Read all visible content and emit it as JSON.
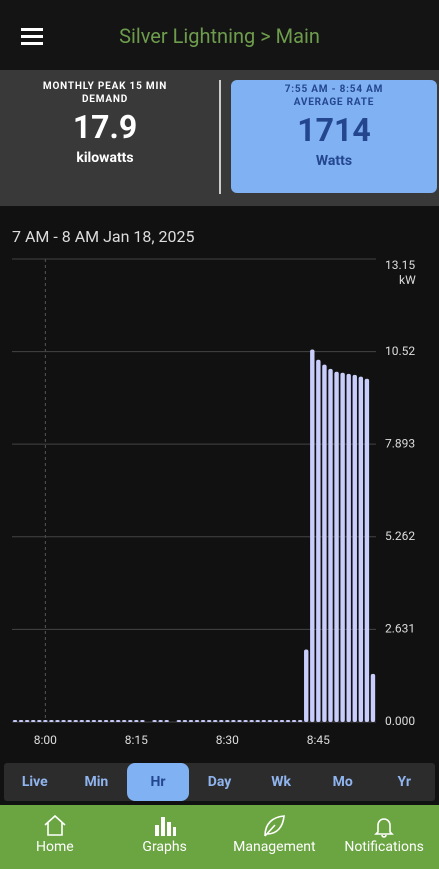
{
  "header": {
    "title": "Silver Lightning > Main"
  },
  "cards": [
    {
      "label": "MONTHLY PEAK 15 MIN DEMAND",
      "value": 17.9,
      "unit": "kilowatts"
    },
    {
      "time": "7:55 AM - 8:54 AM",
      "label": "AVERAGE RATE",
      "value": 1714,
      "unit": "Watts"
    }
  ],
  "chart_data": {
    "type": "bar",
    "title": "7 AM - 8 AM Jan 18, 2025",
    "y_unit": "kW",
    "color": "#c9cdfb",
    "grid": true,
    "categories": [
      null,
      null,
      null,
      null,
      null,
      "8:00",
      null,
      null,
      null,
      null,
      null,
      null,
      null,
      null,
      null,
      null,
      null,
      null,
      null,
      null,
      "8:15",
      null,
      null,
      null,
      null,
      null,
      null,
      null,
      null,
      null,
      null,
      null,
      null,
      null,
      null,
      "8:30",
      null,
      null,
      null,
      null,
      null,
      null,
      null,
      null,
      null,
      null,
      null,
      null,
      null,
      null,
      "8:45",
      null,
      null,
      null,
      null,
      null,
      null,
      null,
      null,
      null
    ],
    "values": [
      0.03,
      0.03,
      0.03,
      0.03,
      0.03,
      0.03,
      0.03,
      0.03,
      0.03,
      0.03,
      0.03,
      0.03,
      0.03,
      0.03,
      0.03,
      0.03,
      0.03,
      0.03,
      0.03,
      0.03,
      0.03,
      0.03,
      null,
      0.03,
      0.03,
      0.03,
      null,
      0.03,
      0.03,
      0.03,
      0.03,
      0.03,
      0.03,
      0.03,
      0.03,
      0.03,
      0.03,
      0.03,
      0.03,
      0.03,
      0.03,
      0.03,
      0.03,
      0.03,
      0.03,
      0.03,
      0.03,
      0.03,
      2.03,
      10.55,
      10.26,
      10.12,
      10.0,
      9.92,
      9.89,
      9.86,
      9.83,
      9.78,
      9.72,
      1.34
    ],
    "ylim": [
      0,
      13.15
    ],
    "yticks": [
      {
        "value": 0,
        "label": "0.000"
      },
      2.631,
      5.262,
      7.893,
      10.52,
      13.15
    ]
  },
  "ranges": [
    "Live",
    "Min",
    "Hr",
    "Day",
    "Wk",
    "Mo",
    "Yr"
  ],
  "selected_range": "Hr",
  "nav": [
    "Home",
    "Graphs",
    "Management",
    "Notifications"
  ]
}
